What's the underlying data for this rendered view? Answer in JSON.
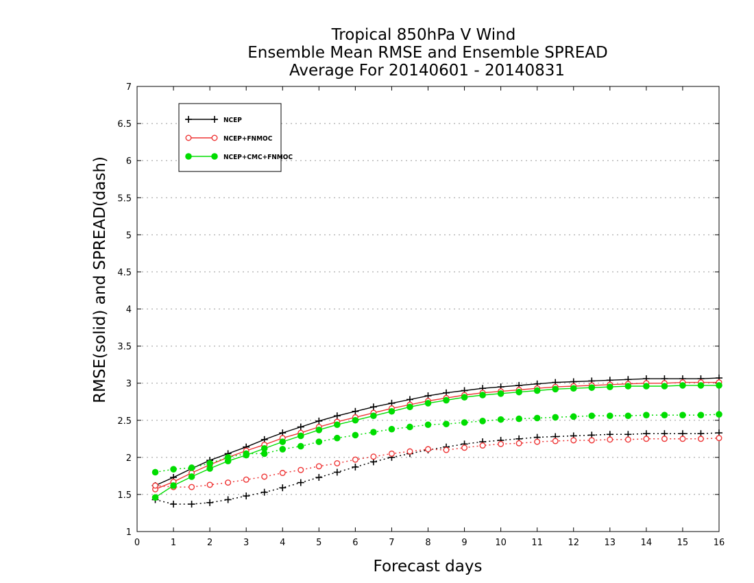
{
  "chart_data": {
    "type": "line",
    "title": [
      "Tropical 850hPa V Wind",
      "Ensemble Mean RMSE and Ensemble SPREAD",
      "Average For 20140601 - 20140831"
    ],
    "xlabel": "Forecast days",
    "ylabel": "RMSE(solid) and SPREAD(dash)",
    "xlim": [
      0,
      16
    ],
    "ylim": [
      1,
      7
    ],
    "x_ticks": [
      "0",
      "1",
      "2",
      "3",
      "4",
      "5",
      "6",
      "7",
      "8",
      "9",
      "10",
      "11",
      "12",
      "13",
      "14",
      "15",
      "16"
    ],
    "y_ticks": [
      "1",
      "1.5",
      "2",
      "2.5",
      "3",
      "3.5",
      "4",
      "4.5",
      "5",
      "5.5",
      "6",
      "6.5",
      "7"
    ],
    "grid": "horizontal dotted",
    "legend_position": "top-left",
    "x": [
      0.5,
      1,
      1.5,
      2,
      2.5,
      3,
      3.5,
      4,
      4.5,
      5,
      5.5,
      6,
      6.5,
      7,
      7.5,
      8,
      8.5,
      9,
      9.5,
      10,
      10.5,
      11,
      11.5,
      12,
      12.5,
      13,
      13.5,
      14,
      14.5,
      15,
      15.5,
      16
    ],
    "series": [
      {
        "name": "NCEP",
        "color": "#000000",
        "marker": "plus",
        "rmse": [
          1.62,
          1.73,
          1.85,
          1.96,
          2.05,
          2.14,
          2.24,
          2.33,
          2.41,
          2.49,
          2.56,
          2.62,
          2.68,
          2.73,
          2.78,
          2.83,
          2.87,
          2.9,
          2.93,
          2.95,
          2.97,
          2.99,
          3.01,
          3.02,
          3.03,
          3.04,
          3.05,
          3.06,
          3.06,
          3.06,
          3.06,
          3.07
        ],
        "spread": [
          1.43,
          1.37,
          1.37,
          1.39,
          1.43,
          1.48,
          1.53,
          1.59,
          1.66,
          1.73,
          1.8,
          1.87,
          1.94,
          2.0,
          2.05,
          2.1,
          2.14,
          2.18,
          2.21,
          2.23,
          2.25,
          2.27,
          2.28,
          2.29,
          2.3,
          2.31,
          2.31,
          2.32,
          2.32,
          2.32,
          2.32,
          2.33
        ]
      },
      {
        "name": "NCEP+FNMOC",
        "color": "#ee3333",
        "marker": "open-circle",
        "rmse": [
          1.57,
          1.67,
          1.79,
          1.9,
          2.0,
          2.09,
          2.17,
          2.26,
          2.33,
          2.41,
          2.48,
          2.54,
          2.6,
          2.66,
          2.71,
          2.76,
          2.8,
          2.84,
          2.87,
          2.89,
          2.91,
          2.93,
          2.95,
          2.96,
          2.97,
          2.98,
          2.99,
          3.0,
          3.0,
          3.01,
          3.01,
          3.01
        ],
        "spread": [
          1.62,
          1.6,
          1.6,
          1.63,
          1.66,
          1.7,
          1.74,
          1.79,
          1.83,
          1.88,
          1.92,
          1.97,
          2.01,
          2.05,
          2.08,
          2.11,
          2.1,
          2.13,
          2.16,
          2.18,
          2.19,
          2.21,
          2.22,
          2.23,
          2.23,
          2.24,
          2.24,
          2.25,
          2.25,
          2.25,
          2.25,
          2.26
        ]
      },
      {
        "name": "NCEP+CMC+FNMOC",
        "color": "#00dd00",
        "marker": "filled-circle",
        "rmse": [
          1.46,
          1.62,
          1.74,
          1.85,
          1.95,
          2.03,
          2.12,
          2.21,
          2.29,
          2.37,
          2.44,
          2.5,
          2.56,
          2.62,
          2.68,
          2.73,
          2.77,
          2.81,
          2.84,
          2.86,
          2.88,
          2.9,
          2.92,
          2.93,
          2.94,
          2.95,
          2.96,
          2.96,
          2.96,
          2.97,
          2.97,
          2.97
        ],
        "spread": [
          1.8,
          1.84,
          1.86,
          1.92,
          2.0,
          2.05,
          2.05,
          2.11,
          2.15,
          2.21,
          2.26,
          2.3,
          2.34,
          2.38,
          2.41,
          2.44,
          2.45,
          2.47,
          2.49,
          2.51,
          2.52,
          2.53,
          2.54,
          2.55,
          2.56,
          2.56,
          2.56,
          2.57,
          2.57,
          2.57,
          2.57,
          2.58
        ]
      }
    ]
  }
}
